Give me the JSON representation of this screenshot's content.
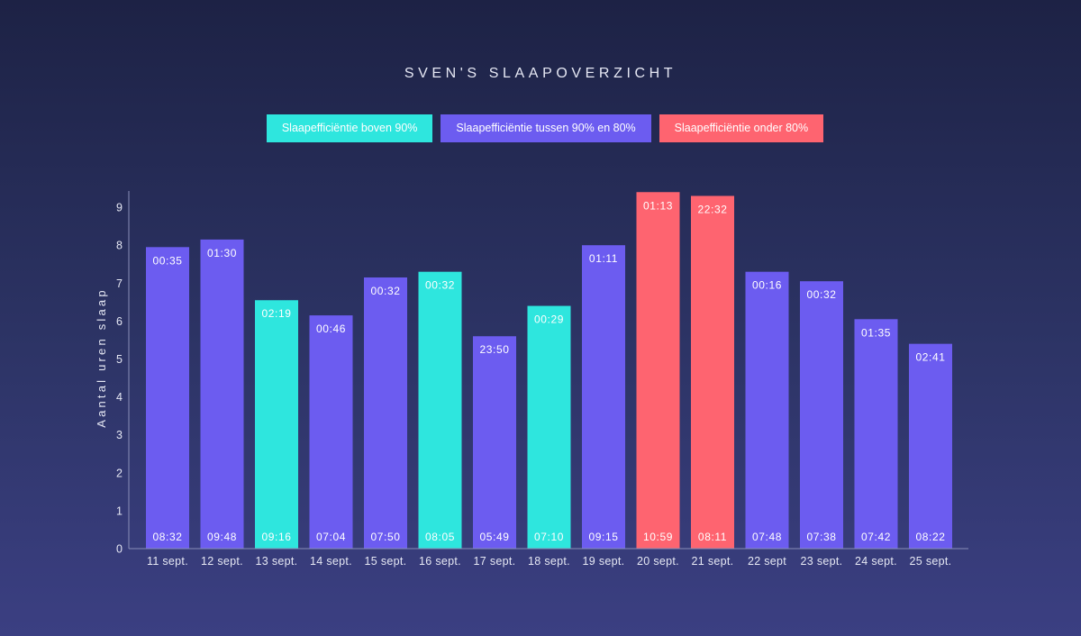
{
  "chart_data": {
    "type": "bar",
    "title": "SVEN'S SLAAPOVERZICHT",
    "ylabel": "Aantal uren slaap",
    "xlabel": "",
    "ylim": [
      0,
      9.5
    ],
    "yticks": [
      "0",
      "1",
      "2",
      "3",
      "4",
      "5",
      "6",
      "7",
      "8",
      "9"
    ],
    "legend": [
      {
        "label": "Slaapefficiëntie boven 90%",
        "color": "#2ee6de"
      },
      {
        "label": "Slaapefficiëntie tussen 90% en 80%",
        "color": "#6c5cf0"
      },
      {
        "label": "Slaapefficiëntie onder 80%",
        "color": "#fe6470"
      }
    ],
    "categories": [
      "11 sept.",
      "12 sept.",
      "13 sept.",
      "14 sept.",
      "15 sept.",
      "16 sept.",
      "17 sept.",
      "18 sept.",
      "19 sept.",
      "20 sept.",
      "21 sept.",
      "22 sept",
      "23 sept.",
      "24 sept.",
      "25 sept."
    ],
    "values": [
      7.95,
      8.15,
      6.55,
      6.15,
      7.15,
      7.3,
      5.6,
      6.4,
      8.0,
      9.4,
      9.3,
      7.3,
      7.05,
      6.05,
      5.4
    ],
    "efficiency_class": [
      1,
      1,
      0,
      1,
      1,
      0,
      1,
      0,
      1,
      2,
      2,
      1,
      1,
      1,
      1
    ],
    "bedtimes": [
      "00:35",
      "01:30",
      "02:19",
      "00:46",
      "00:32",
      "00:32",
      "23:50",
      "00:29",
      "01:11",
      "01:13",
      "22:32",
      "00:16",
      "00:32",
      "01:35",
      "02:41"
    ],
    "wake_times": [
      "08:32",
      "09:48",
      "09:16",
      "07:04",
      "07:50",
      "08:05",
      "05:49",
      "07:10",
      "09:15",
      "10:59",
      "08:11",
      "07:48",
      "07:38",
      "07:42",
      "08:22"
    ],
    "grid": false,
    "legend_position": "top-center"
  }
}
